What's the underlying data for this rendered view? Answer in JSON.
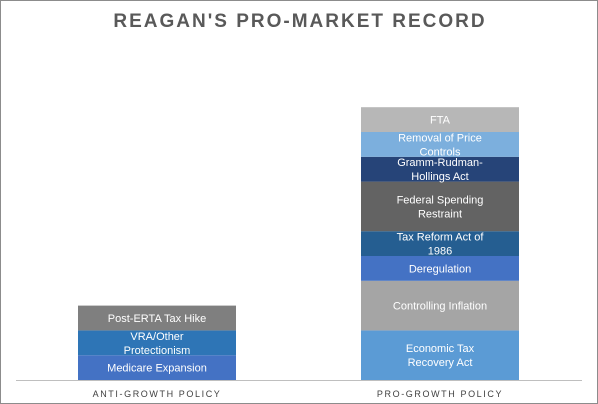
{
  "chart_data": {
    "type": "bar",
    "stacked": true,
    "title": "REAGAN'S PRO-MARKET RECORD",
    "xlabel": "",
    "ylabel": "",
    "ylim": [
      0,
      12
    ],
    "grid": false,
    "legend": "none",
    "categories": [
      "ANTI-GROWTH POLICY",
      "PRO-GROWTH POLICY"
    ],
    "series": [
      {
        "name": "Medicare Expansion",
        "values": [
          1,
          0
        ],
        "color": "#4472c4"
      },
      {
        "name": "VRA/Other Protectionism",
        "values": [
          1,
          0
        ],
        "color": "#2e75b6"
      },
      {
        "name": "Post-ERTA Tax Hike",
        "values": [
          1,
          0
        ],
        "color": "#7f7f7f"
      },
      {
        "name": "Economic Tax Recovery Act",
        "values": [
          0,
          2
        ],
        "color": "#5b9bd5"
      },
      {
        "name": "Controlling Inflation",
        "values": [
          0,
          2
        ],
        "color": "#a5a5a5"
      },
      {
        "name": "Deregulation",
        "values": [
          0,
          1
        ],
        "color": "#4472c4"
      },
      {
        "name": "Tax Reform Act of 1986",
        "values": [
          0,
          1
        ],
        "color": "#255e91"
      },
      {
        "name": "Federal Spending Restraint",
        "values": [
          0,
          2
        ],
        "color": "#636363"
      },
      {
        "name": "Gramm-Rudman-Hollings Act",
        "values": [
          0,
          1
        ],
        "color": "#264478"
      },
      {
        "name": "Removal of Price Controls",
        "values": [
          0,
          1
        ],
        "color": "#7cafdd"
      },
      {
        "name": "FTA",
        "values": [
          0,
          1
        ],
        "color": "#b7b7b7"
      }
    ],
    "segment_label_lines": {
      "VRA/Other Protectionism": [
        "VRA/Other",
        "Protectionism"
      ],
      "Economic Tax Recovery Act": [
        "Economic Tax",
        "Recovery Act"
      ],
      "Tax Reform Act of 1986": [
        "Tax Reform Act of",
        "1986"
      ],
      "Federal Spending Restraint": [
        "Federal Spending",
        "Restraint"
      ],
      "Gramm-Rudman-Hollings Act": [
        "Gramm-Rudman-",
        "Hollings Act"
      ],
      "Removal of Price Controls": [
        "Removal of Price",
        "Controls"
      ]
    }
  }
}
